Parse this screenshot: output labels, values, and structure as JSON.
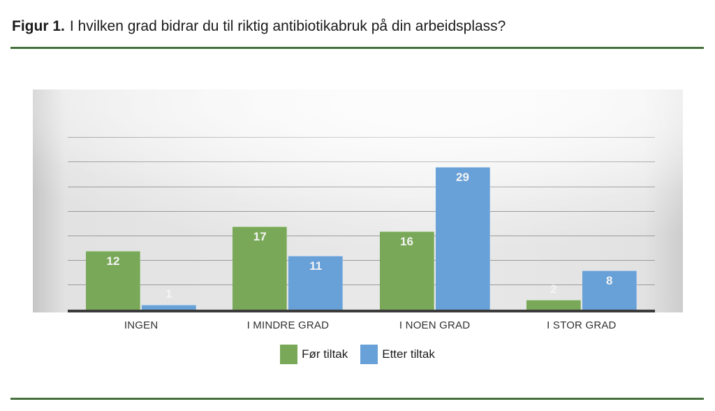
{
  "figure": {
    "title_prefix": "Figur 1.",
    "title_text": "I hvilken grad bidrar du til riktig antibiotikabruk på din arbeidsplass?",
    "rule_color": "#46713c"
  },
  "chart_data": {
    "type": "bar",
    "title": "",
    "xlabel": "",
    "ylabel": "",
    "categories": [
      "INGEN",
      "I MINDRE GRAD",
      "I NOEN GRAD",
      "I STOR GRAD"
    ],
    "series": [
      {
        "name": "Før tiltak",
        "color": "#79a958",
        "values": [
          12,
          17,
          16,
          2
        ]
      },
      {
        "name": "Etter tiltak",
        "color": "#68a0d8",
        "values": [
          1,
          11,
          29,
          8
        ]
      }
    ],
    "ylim": [
      0,
      35
    ],
    "gridline_step": 5,
    "grid": true,
    "legend_position": "bottom",
    "value_labels": true,
    "axis_color": "#3b3b3b",
    "gridline_color": "#9b9b9b",
    "value_label_color": "#f4f4f4"
  }
}
